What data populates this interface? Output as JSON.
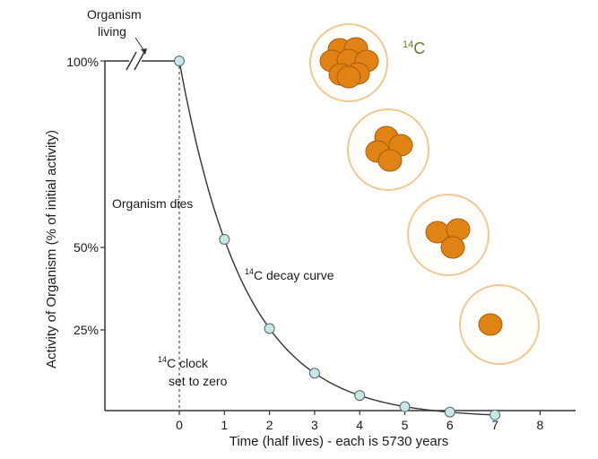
{
  "chart_data": {
    "type": "line",
    "title": "",
    "xlabel": "Time (half lives) - each is 5730 years",
    "ylabel": "Activity of Organism (% of initial activity)",
    "xlim": [
      -1.65,
      8.6
    ],
    "ylim": [
      0,
      100
    ],
    "x_ticks": [
      "0",
      "1",
      "2",
      "3",
      "4",
      "5",
      "6",
      "7",
      "8"
    ],
    "y_ticks": [
      "25%",
      "50%",
      "100%"
    ],
    "grid": false,
    "series": [
      {
        "x": [
          0,
          1,
          2,
          3,
          4,
          5,
          6,
          7
        ],
        "values": [
          100,
          50,
          25,
          12.5,
          6.25,
          3.1,
          1.6,
          0.8
        ],
        "color": "#c8e6e6"
      }
    ],
    "line_color": "#333333",
    "living_line": {
      "x_start": -1.65,
      "x_end": 0,
      "y": 100
    },
    "annotations": {
      "organism_living": [
        "Organism",
        "living"
      ],
      "organism_dies": "Organism dies",
      "decay_curve": "C decay curve",
      "decay_curve_sup": "14",
      "clock": [
        "C clock",
        "set to zero"
      ],
      "clock_sup": "14",
      "isotope": "C",
      "isotope_sup": "14"
    },
    "atom_groups": [
      {
        "count": 8
      },
      {
        "count": 4
      },
      {
        "count": 3
      },
      {
        "count": 1
      }
    ],
    "colors": {
      "atom_fill": "#e08214",
      "atom_stroke": "#a85f08",
      "circle_stroke": "#f2c891",
      "circle_fill": "#fffdf9",
      "isotope_label": "#6b7a2a"
    }
  }
}
